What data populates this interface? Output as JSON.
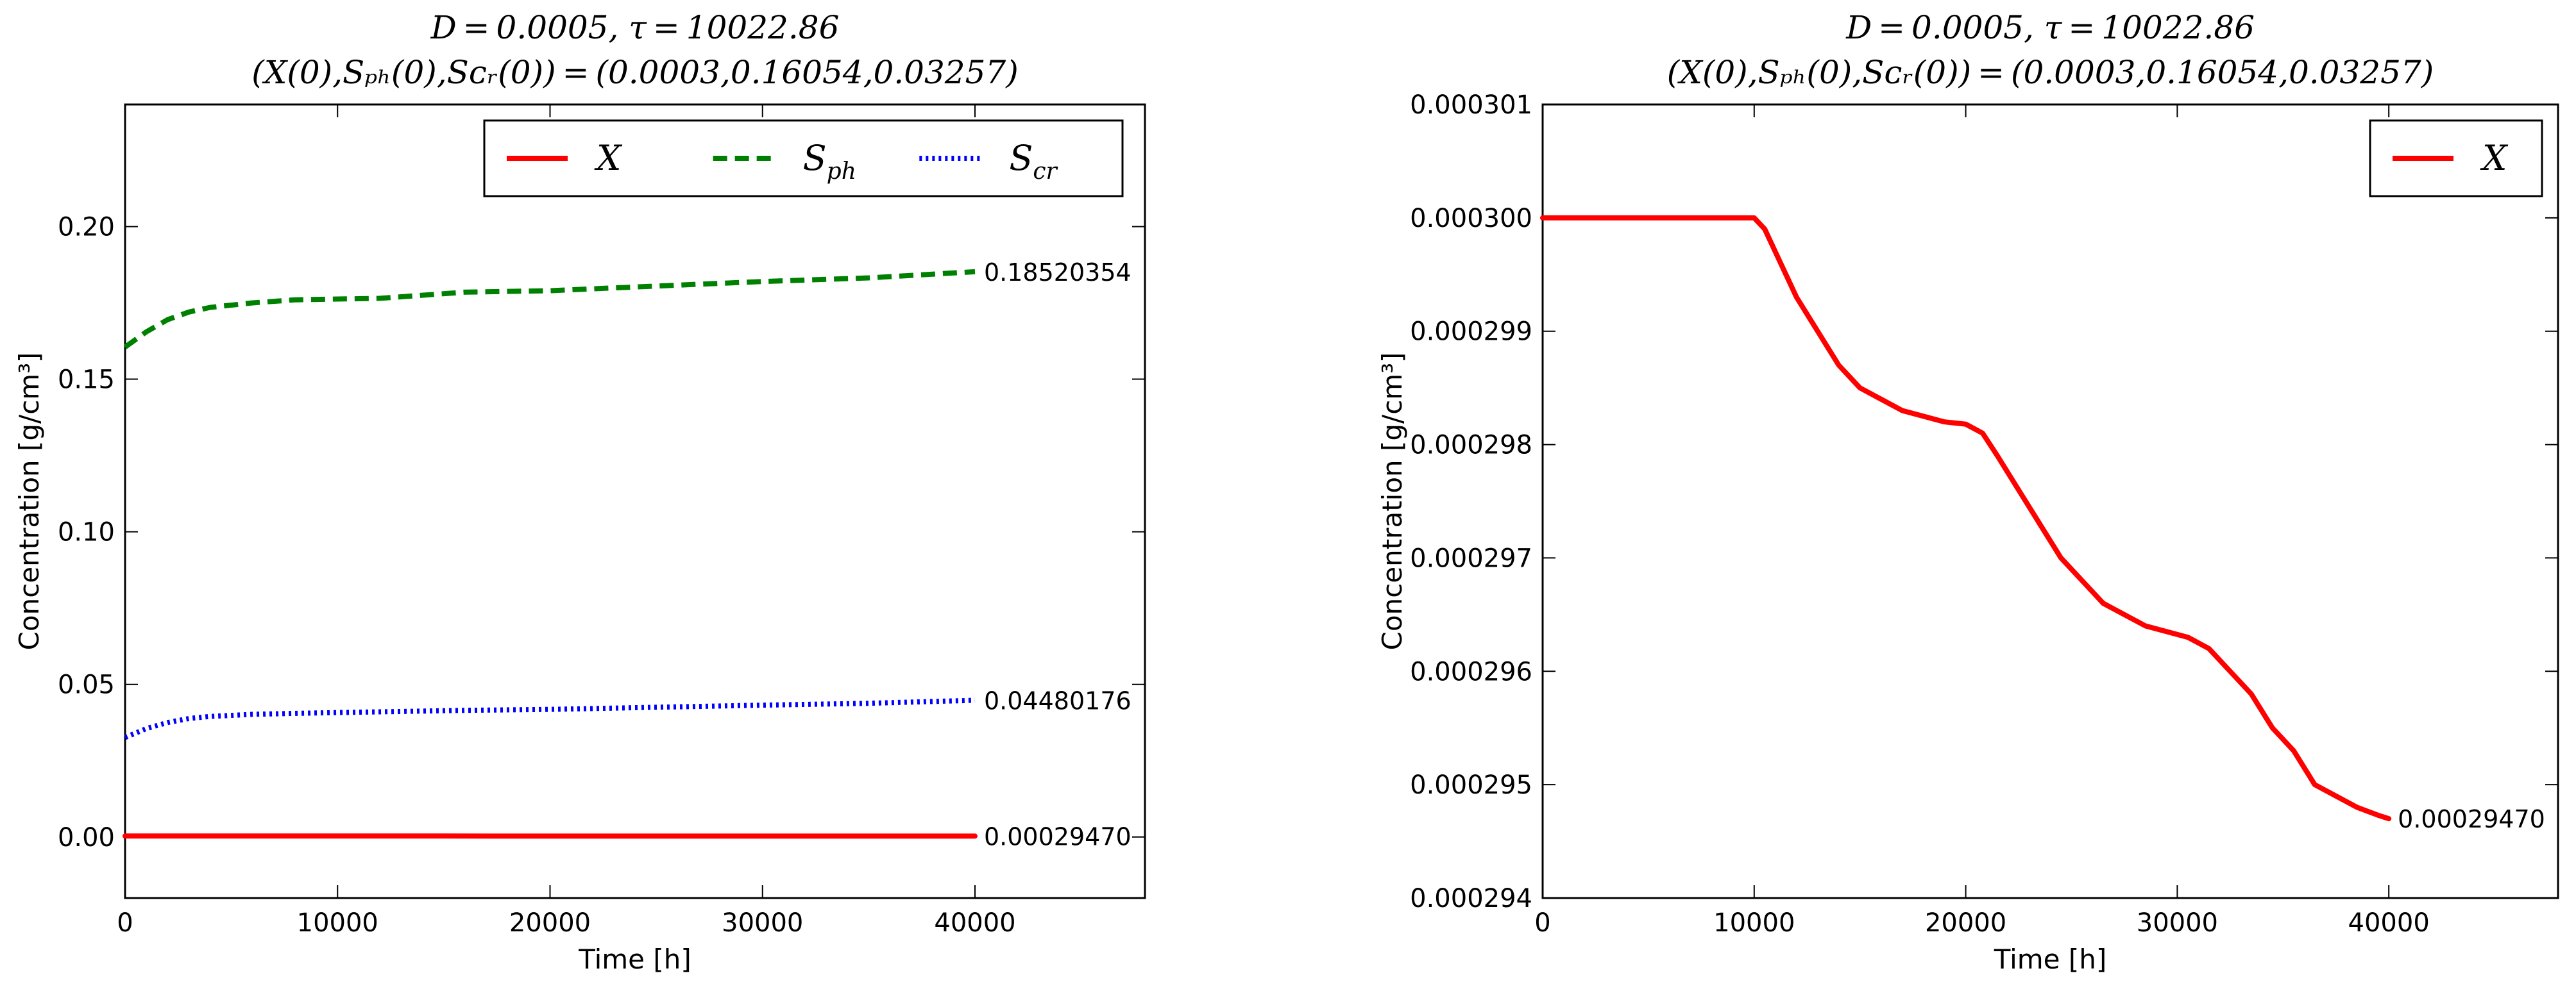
{
  "chart_data": [
    {
      "type": "line",
      "title_line1": "D = 0.0005,   τ = 10022.86",
      "title_line2": "(X(0),Sₚₕ(0),Sᴄᵣ(0)) = (0.0003,0.16054,0.03257)",
      "xlabel": "Time [h]",
      "ylabel": "Concentration [g/cm³]",
      "xlim": [
        0,
        48000
      ],
      "ylim": [
        -0.02,
        0.24
      ],
      "xticks": [
        "0",
        "10000",
        "20000",
        "30000",
        "40000"
      ],
      "xtick_values": [
        0,
        10000,
        20000,
        30000,
        40000
      ],
      "yticks": [
        "0.00",
        "0.05",
        "0.10",
        "0.15",
        "0.20"
      ],
      "ytick_values": [
        0.0,
        0.05,
        0.1,
        0.15,
        0.2
      ],
      "grid": false,
      "legend_position": "top-right",
      "series": [
        {
          "name": "X",
          "color": "#ff0000",
          "style": "solid",
          "x": [
            0,
            5000,
            10000,
            15000,
            20000,
            25000,
            30000,
            35000,
            40000
          ],
          "y": [
            0.0003,
            0.0003,
            0.0003,
            0.000299,
            0.000298,
            0.000297,
            0.000296,
            0.000296,
            0.0002947
          ],
          "end_label": "0.00029470"
        },
        {
          "name": "S_ph",
          "color": "#008000",
          "style": "dashed",
          "x": [
            0,
            1000,
            2000,
            3000,
            4000,
            6000,
            8000,
            12000,
            16000,
            20000,
            25000,
            30000,
            35000,
            40000
          ],
          "y": [
            0.1605,
            0.1655,
            0.1695,
            0.172,
            0.1735,
            0.175,
            0.176,
            0.1765,
            0.1785,
            0.179,
            0.1805,
            0.182,
            0.1832,
            0.1852
          ],
          "end_label": "0.18520354"
        },
        {
          "name": "S_cr",
          "color": "#0000ff",
          "style": "dotted",
          "x": [
            0,
            1000,
            2000,
            3000,
            4000,
            6000,
            8000,
            12000,
            16000,
            20000,
            25000,
            30000,
            35000,
            40000
          ],
          "y": [
            0.0326,
            0.0355,
            0.0375,
            0.0388,
            0.0395,
            0.0402,
            0.0405,
            0.041,
            0.0415,
            0.0418,
            0.0425,
            0.0432,
            0.0438,
            0.0448
          ],
          "end_label": "0.04480176"
        }
      ]
    },
    {
      "type": "line",
      "title_line1": "D = 0.0005,   τ = 10022.86",
      "title_line2": "(X(0),Sₚₕ(0),Sᴄᵣ(0)) = (0.0003,0.16054,0.03257)",
      "xlabel": "Time [h]",
      "ylabel": "Concentration [g/cm³]",
      "xlim": [
        0,
        48000
      ],
      "ylim": [
        0.000294,
        0.000301
      ],
      "xticks": [
        "0",
        "10000",
        "20000",
        "30000",
        "40000"
      ],
      "xtick_values": [
        0,
        10000,
        20000,
        30000,
        40000
      ],
      "yticks": [
        "0.000294",
        "0.000295",
        "0.000296",
        "0.000297",
        "0.000298",
        "0.000299",
        "0.000300",
        "0.000301"
      ],
      "ytick_values": [
        0.000294,
        0.000295,
        0.000296,
        0.000297,
        0.000298,
        0.000299,
        0.0003,
        0.000301
      ],
      "grid": false,
      "legend_position": "top-right",
      "series": [
        {
          "name": "X",
          "color": "#ff0000",
          "style": "solid",
          "x": [
            0,
            2000,
            4000,
            6000,
            8000,
            10000,
            10500,
            11000,
            12000,
            13000,
            14000,
            15000,
            16000,
            17000,
            18000,
            19000,
            20000,
            20800,
            21500,
            22500,
            23500,
            24500,
            25500,
            26500,
            27500,
            28500,
            29500,
            30500,
            31500,
            32500,
            33500,
            34500,
            35500,
            36500,
            37500,
            38500,
            39500,
            40000
          ],
          "y": [
            0.0003,
            0.0003,
            0.0003,
            0.0003,
            0.0003,
            0.0003,
            0.0002999,
            0.0002997,
            0.0002993,
            0.000299,
            0.0002987,
            0.0002985,
            0.0002984,
            0.0002983,
            0.00029825,
            0.0002982,
            0.00029818,
            0.0002981,
            0.0002979,
            0.0002976,
            0.0002973,
            0.000297,
            0.0002968,
            0.0002966,
            0.0002965,
            0.0002964,
            0.00029635,
            0.0002963,
            0.0002962,
            0.000296,
            0.0002958,
            0.0002955,
            0.0002953,
            0.000295,
            0.0002949,
            0.0002948,
            0.00029473,
            0.0002947
          ],
          "end_label": "0.00029470"
        }
      ]
    }
  ]
}
